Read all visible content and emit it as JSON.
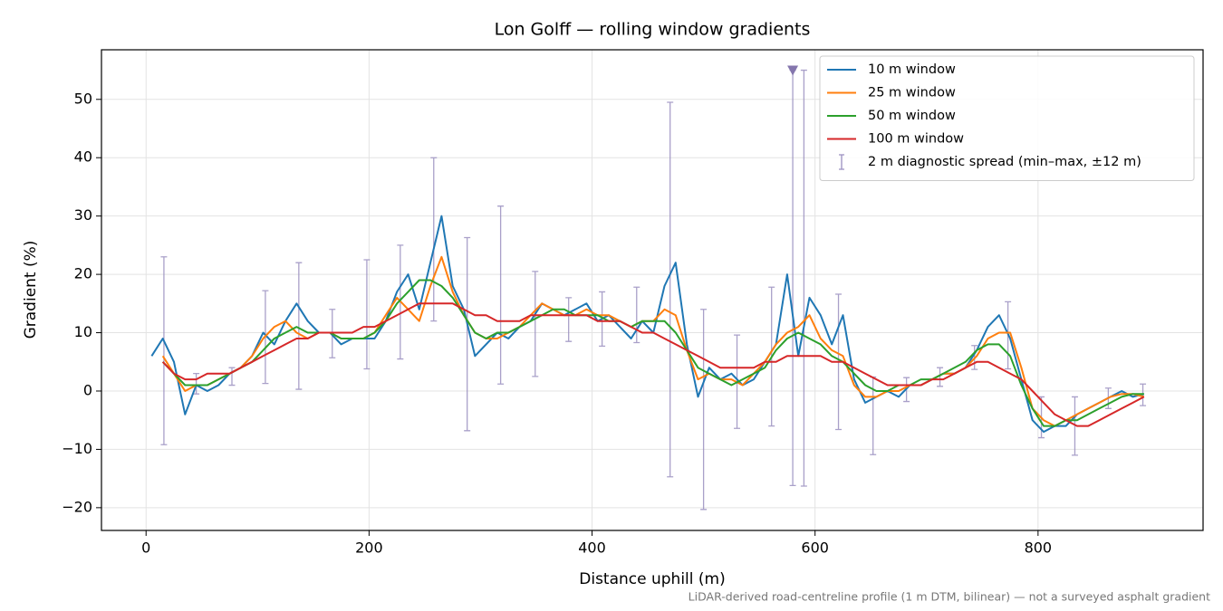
{
  "chart_data": {
    "type": "line",
    "title": "Lon Golff — rolling window gradients",
    "xlabel": "Distance uphill (m)",
    "ylabel": "Gradient (%)",
    "note": "LiDAR-derived road-centreline profile (1 m DTM, bilinear) — not a surveyed asphalt gradient",
    "xlim": [
      -40,
      948
    ],
    "ylim": [
      -23.9,
      58.5
    ],
    "xticks": [
      0,
      200,
      400,
      600,
      800
    ],
    "yticks": [
      {
        "value": -20,
        "label": "−20"
      },
      {
        "value": -10,
        "label": "−10"
      },
      0,
      10,
      20,
      30,
      40,
      50
    ],
    "grid": true,
    "legend": "upper right",
    "x": [
      5,
      15,
      25,
      35,
      45,
      55,
      65,
      75,
      85,
      95,
      105,
      115,
      125,
      135,
      145,
      155,
      165,
      175,
      185,
      195,
      205,
      215,
      225,
      235,
      245,
      255,
      265,
      275,
      285,
      295,
      305,
      315,
      325,
      335,
      345,
      355,
      365,
      375,
      385,
      395,
      405,
      415,
      425,
      435,
      445,
      455,
      465,
      475,
      485,
      495,
      505,
      515,
      525,
      535,
      545,
      555,
      565,
      575,
      585,
      595,
      605,
      615,
      625,
      635,
      645,
      655,
      665,
      675,
      685,
      695,
      705,
      715,
      725,
      735,
      745,
      755,
      765,
      775,
      785,
      795,
      805,
      815,
      825,
      835,
      845,
      855,
      865,
      875,
      885,
      895
    ],
    "series": [
      {
        "name": "10 m window",
        "color": "#1f77b4",
        "values": [
          6,
          9,
          5,
          -4,
          1,
          0,
          1,
          3,
          4,
          6,
          10,
          8,
          12,
          15,
          12,
          10,
          10,
          8,
          9,
          9,
          9,
          12,
          17,
          20,
          14,
          22,
          30,
          18,
          14,
          6,
          8,
          10,
          9,
          11,
          12,
          15,
          14,
          13,
          14,
          15,
          12,
          13,
          11,
          9,
          12,
          10,
          18,
          22,
          8,
          -1,
          4,
          2,
          3,
          1,
          2,
          5,
          8,
          20,
          6,
          16,
          13,
          8,
          13,
          2,
          -2,
          -1,
          0,
          -1,
          1,
          1,
          2,
          3,
          3,
          4,
          7,
          11,
          13,
          9,
          2,
          -5,
          -7,
          -6,
          -6,
          -4,
          -3,
          -2,
          -1,
          0,
          -1,
          -0.5
        ]
      },
      {
        "name": "25 m window",
        "color": "#ff7f0e",
        "values": [
          null,
          6,
          3,
          0,
          1,
          1,
          2,
          3,
          4,
          6,
          9,
          11,
          12,
          10,
          9,
          10,
          10,
          9,
          9,
          9,
          10,
          13,
          16,
          14,
          12,
          18,
          23,
          17,
          13,
          10,
          9,
          9,
          10,
          11,
          13,
          15,
          14,
          13,
          13,
          14,
          13,
          13,
          12,
          11,
          12,
          12,
          14,
          13,
          7,
          2,
          3,
          2,
          2,
          1,
          3,
          5,
          8,
          10,
          11,
          13,
          9,
          7,
          6,
          1,
          -1,
          -1,
          0,
          0,
          1,
          1,
          2,
          3,
          3,
          4,
          6,
          9,
          10,
          10,
          4,
          -3,
          -5,
          -6,
          -5,
          -4,
          -3,
          -2,
          -1,
          -0.5,
          -0.5,
          -1
        ]
      },
      {
        "name": "50 m window",
        "color": "#2ca02c",
        "values": [
          null,
          5,
          3,
          1,
          1,
          1,
          2,
          3,
          4,
          5,
          7,
          9,
          10,
          11,
          10,
          10,
          10,
          9,
          9,
          9,
          10,
          12,
          15,
          17,
          19,
          19,
          18,
          16,
          13,
          10,
          9,
          10,
          10,
          11,
          12,
          13,
          14,
          14,
          13,
          13,
          13,
          12,
          12,
          11,
          12,
          12,
          12,
          10,
          7,
          4,
          3,
          2,
          1,
          2,
          3,
          4,
          7,
          9,
          10,
          9,
          8,
          6,
          5,
          3,
          1,
          0,
          0,
          1,
          1,
          2,
          2,
          3,
          4,
          5,
          7,
          8,
          8,
          6,
          1,
          -3,
          -6,
          -6,
          -5,
          -5,
          -4,
          -3,
          -2,
          -1,
          -0.5,
          -0.5
        ]
      },
      {
        "name": "100 m window",
        "color": "#d62728",
        "values": [
          null,
          5,
          3,
          2,
          2,
          3,
          3,
          3,
          4,
          5,
          6,
          7,
          8,
          9,
          9,
          10,
          10,
          10,
          10,
          11,
          11,
          12,
          13,
          14,
          15,
          15,
          15,
          15,
          14,
          13,
          13,
          12,
          12,
          12,
          13,
          13,
          13,
          13,
          13,
          13,
          12,
          12,
          12,
          11,
          10,
          10,
          9,
          8,
          7,
          6,
          5,
          4,
          4,
          4,
          4,
          5,
          5,
          6,
          6,
          6,
          6,
          5,
          5,
          4,
          3,
          2,
          1,
          1,
          1,
          1,
          2,
          2,
          3,
          4,
          5,
          5,
          4,
          3,
          2,
          0,
          -2,
          -4,
          -5,
          -6,
          -6,
          -5,
          -4,
          -3,
          -2,
          -1
        ]
      }
    ],
    "spread": {
      "name": "2 m diagnostic spread (min–max, ±12 m)",
      "color": "#9a8fc0",
      "flag_index": 19,
      "x": [
        16,
        45,
        77,
        107,
        137,
        167,
        198,
        228,
        258,
        288,
        318,
        349,
        379,
        409,
        440,
        470,
        500,
        530,
        561,
        580,
        590,
        621,
        652,
        682,
        712,
        743,
        773,
        803,
        833,
        863,
        894
      ],
      "low": [
        -9.2,
        -0.5,
        1,
        1.3,
        0.3,
        5.7,
        3.8,
        5.5,
        12,
        -6.8,
        1.2,
        2.5,
        8.5,
        7.7,
        8.3,
        -14.7,
        -20.3,
        -6.4,
        -6,
        -16.2,
        -16.3,
        -6.6,
        -10.9,
        -1.8,
        0.8,
        3.7,
        3.8,
        -8,
        -11,
        -3,
        -2.5
      ],
      "high": [
        23,
        3,
        4,
        17.2,
        22,
        14,
        22.5,
        25,
        40,
        26.3,
        31.7,
        20.5,
        16,
        17,
        17.8,
        49.5,
        14,
        9.6,
        17.8,
        55,
        55,
        16.6,
        2.4,
        2.3,
        4,
        7.8,
        15.3,
        -1,
        -1,
        0.5,
        1.2
      ]
    }
  }
}
